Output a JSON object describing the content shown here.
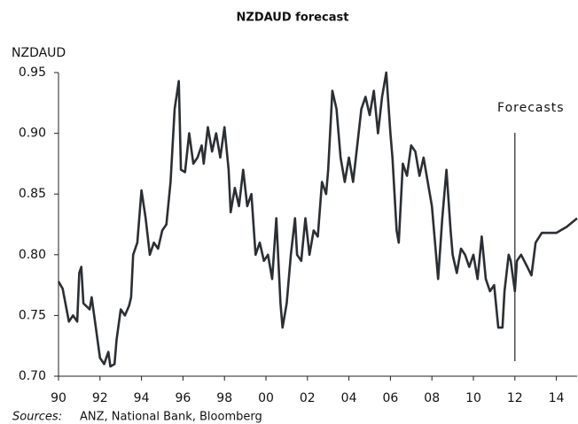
{
  "chart_data": {
    "type": "line",
    "title": "NZDAUD forecast",
    "ylabel": "NZDAUD",
    "annotation": "Forecasts",
    "forecast_start": 2012,
    "source_label": "Sources:",
    "source": "ANZ, National Bank, Bloomberg",
    "x": [
      1990.0,
      1990.2,
      1990.5,
      1990.7,
      1990.9,
      1991.0,
      1991.1,
      1991.2,
      1991.5,
      1991.6,
      1991.8,
      1992.0,
      1992.2,
      1992.4,
      1992.5,
      1992.7,
      1992.8,
      1993.0,
      1993.2,
      1993.4,
      1993.5,
      1993.6,
      1993.8,
      1994.0,
      1994.2,
      1994.4,
      1994.6,
      1994.8,
      1995.0,
      1995.2,
      1995.4,
      1995.6,
      1995.8,
      1995.9,
      1996.1,
      1996.3,
      1996.5,
      1996.7,
      1996.9,
      1997.0,
      1997.2,
      1997.4,
      1997.6,
      1997.8,
      1998.0,
      1998.2,
      1998.3,
      1998.5,
      1998.7,
      1998.9,
      1999.1,
      1999.3,
      1999.5,
      1999.7,
      1999.9,
      2000.1,
      2000.3,
      2000.5,
      2000.7,
      2000.8,
      2001.0,
      2001.2,
      2001.4,
      2001.5,
      2001.7,
      2001.9,
      2002.1,
      2002.3,
      2002.5,
      2002.7,
      2002.9,
      2003.0,
      2003.2,
      2003.4,
      2003.6,
      2003.8,
      2004.0,
      2004.2,
      2004.4,
      2004.6,
      2004.8,
      2005.0,
      2005.2,
      2005.4,
      2005.6,
      2005.8,
      2006.0,
      2006.1,
      2006.3,
      2006.4,
      2006.6,
      2006.8,
      2007.0,
      2007.2,
      2007.4,
      2007.6,
      2007.8,
      2008.0,
      2008.2,
      2008.3,
      2008.5,
      2008.7,
      2008.9,
      2009.0,
      2009.2,
      2009.4,
      2009.6,
      2009.8,
      2010.0,
      2010.2,
      2010.4,
      2010.6,
      2010.8,
      2011.0,
      2011.2,
      2011.4,
      2011.5,
      2011.7,
      2011.8,
      2012.0,
      2012.1,
      2012.3,
      2012.6,
      2012.8,
      2013.0,
      2013.3,
      2014.0,
      2014.5,
      2015.0
    ],
    "series": [
      {
        "name": "NZDAUD",
        "color": "#2b2f33",
        "values": [
          0.778,
          0.772,
          0.745,
          0.75,
          0.745,
          0.785,
          0.79,
          0.76,
          0.755,
          0.765,
          0.74,
          0.715,
          0.71,
          0.72,
          0.708,
          0.71,
          0.73,
          0.755,
          0.75,
          0.758,
          0.765,
          0.8,
          0.81,
          0.853,
          0.83,
          0.8,
          0.81,
          0.805,
          0.82,
          0.825,
          0.86,
          0.92,
          0.943,
          0.87,
          0.868,
          0.9,
          0.875,
          0.88,
          0.89,
          0.875,
          0.905,
          0.885,
          0.9,
          0.88,
          0.905,
          0.87,
          0.835,
          0.855,
          0.84,
          0.87,
          0.84,
          0.85,
          0.8,
          0.81,
          0.795,
          0.8,
          0.78,
          0.83,
          0.76,
          0.74,
          0.76,
          0.8,
          0.83,
          0.8,
          0.795,
          0.83,
          0.8,
          0.82,
          0.815,
          0.86,
          0.85,
          0.87,
          0.935,
          0.92,
          0.88,
          0.86,
          0.88,
          0.86,
          0.89,
          0.92,
          0.93,
          0.915,
          0.935,
          0.9,
          0.93,
          0.95,
          0.9,
          0.88,
          0.82,
          0.81,
          0.875,
          0.865,
          0.89,
          0.885,
          0.865,
          0.88,
          0.86,
          0.84,
          0.8,
          0.78,
          0.83,
          0.87,
          0.82,
          0.8,
          0.785,
          0.805,
          0.8,
          0.79,
          0.8,
          0.78,
          0.815,
          0.78,
          0.77,
          0.775,
          0.74,
          0.74,
          0.77,
          0.8,
          0.795,
          0.77,
          0.795,
          0.8,
          0.79,
          0.783,
          0.81,
          0.818,
          0.818,
          0.823,
          0.83
        ]
      }
    ],
    "xlim": [
      1990,
      2015
    ],
    "xticks": [
      {
        "value": 1990,
        "label": "90"
      },
      {
        "value": 1992,
        "label": "92"
      },
      {
        "value": 1994,
        "label": "94"
      },
      {
        "value": 1996,
        "label": "96"
      },
      {
        "value": 1998,
        "label": "98"
      },
      {
        "value": 2000,
        "label": "00"
      },
      {
        "value": 2002,
        "label": "02"
      },
      {
        "value": 2004,
        "label": "04"
      },
      {
        "value": 2006,
        "label": "06"
      },
      {
        "value": 2008,
        "label": "08"
      },
      {
        "value": 2010,
        "label": "10"
      },
      {
        "value": 2012,
        "label": "12"
      },
      {
        "value": 2014,
        "label": "14"
      }
    ],
    "ylim": [
      0.7,
      0.95
    ],
    "yticks": [
      {
        "value": 0.7,
        "label": "0.70"
      },
      0.75,
      {
        "value": 0.8,
        "label": "0.80"
      },
      0.85,
      {
        "value": 0.9,
        "label": "0.90"
      },
      0.95
    ],
    "grid": false
  }
}
